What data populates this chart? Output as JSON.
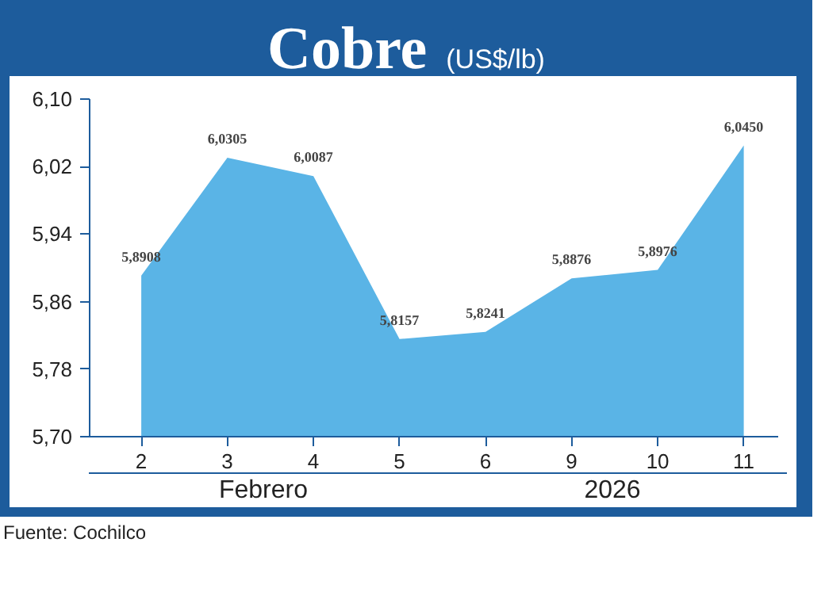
{
  "chart_data": {
    "type": "area",
    "title": "Cobre",
    "subtitle": "(US$/lb)",
    "categories": [
      "2",
      "3",
      "4",
      "5",
      "6",
      "9",
      "10",
      "11"
    ],
    "series": [
      {
        "color": "#5ab4e6",
        "values": [
          5.8908,
          6.0305,
          6.0087,
          5.8157,
          5.8241,
          5.8876,
          5.8976,
          6.045
        ]
      }
    ],
    "value_labels": [
      "5,8908",
      "6,0305",
      "6,0087",
      "5,8157",
      "5,8241",
      "5,8876",
      "5,8976",
      "6,0450"
    ],
    "ylim": [
      5.7,
      6.1
    ],
    "yticks": [
      {
        "value": 5.7,
        "label": "5,70"
      },
      {
        "value": 5.78,
        "label": "5,78"
      },
      {
        "value": 5.86,
        "label": "5,86"
      },
      {
        "value": 5.94,
        "label": "5,94"
      },
      {
        "value": 6.02,
        "label": "6,02"
      },
      {
        "value": 6.1,
        "label": "6,10"
      }
    ],
    "grid": false,
    "annotations": [
      "Febrero",
      "2026",
      "Fuente: Cochilco"
    ]
  }
}
